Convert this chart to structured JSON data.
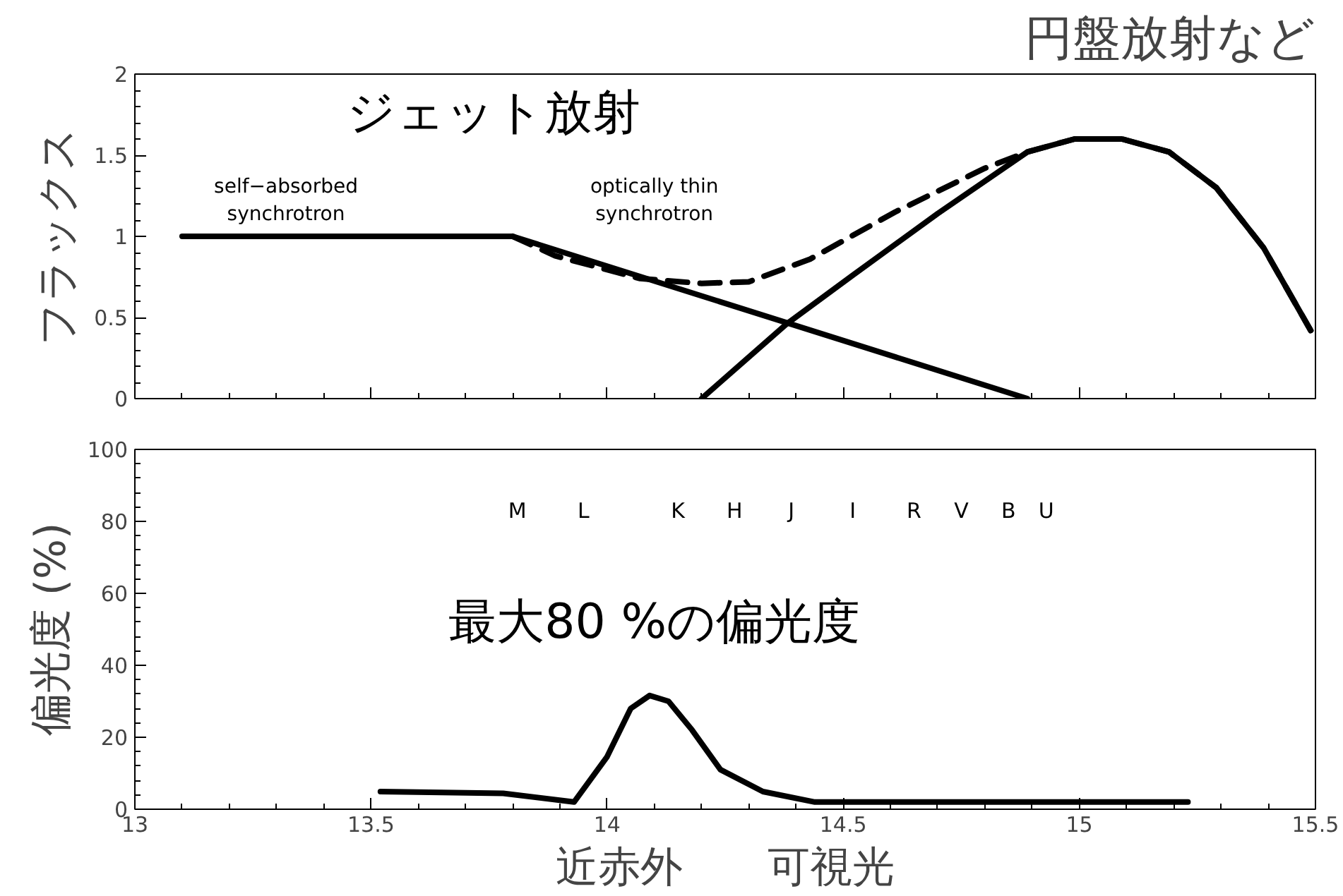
{
  "chart_data": [
    {
      "type": "line",
      "ylabel": "フラックス",
      "xlim": [
        13,
        15.5
      ],
      "xticks": [
        13,
        13.5,
        14,
        14.5,
        15,
        15.5
      ],
      "ylim": [
        0,
        2
      ],
      "yticks": [
        0,
        0.5,
        1,
        1.5,
        2
      ],
      "tick_labels": "y",
      "grid": false,
      "series": [
        {
          "color": "#000000",
          "line_style": "solid",
          "x": [
            13.1,
            13.8,
            14.89
          ],
          "values": [
            1,
            1,
            0
          ]
        },
        {
          "color": "#000000",
          "line_style": "solid",
          "x": [
            14.2,
            14.38,
            14.52,
            14.7,
            14.89,
            14.99,
            15.09,
            15.19,
            15.29,
            15.39,
            15.49
          ],
          "values": [
            0,
            0.46,
            0.76,
            1.14,
            1.52,
            1.6,
            1.6,
            1.52,
            1.3,
            0.93,
            0.42
          ]
        },
        {
          "color": "#000000",
          "line_style": "dashed",
          "x": [
            13.8,
            13.89,
            14.07,
            14.2,
            14.3,
            14.43,
            14.61,
            14.8,
            14.89,
            14.99,
            15.09,
            15.19,
            15.29,
            15.39,
            15.49
          ],
          "values": [
            1,
            0.88,
            0.74,
            0.71,
            0.72,
            0.86,
            1.15,
            1.42,
            1.52,
            1.6,
            1.6,
            1.52,
            1.3,
            0.93,
            0.42
          ]
        }
      ],
      "annotations": [
        "ジェット放射",
        "self−absorbed\nsynchrotron",
        "optically thin\nsynchrotron",
        "円盤放射など"
      ]
    },
    {
      "type": "line",
      "ylabel": "偏光度 (%)",
      "xlabel": "近赤外　　可視光",
      "xlim": [
        13,
        15.5
      ],
      "xticks": [
        13,
        13.5,
        14,
        14.5,
        15,
        15.5
      ],
      "ylim": [
        0,
        100
      ],
      "yticks": [
        0,
        20,
        40,
        60,
        80,
        100
      ],
      "grid": false,
      "series": [
        {
          "color": "#000000",
          "line_style": "solid",
          "x": [
            13.52,
            13.78,
            13.93,
            14.0,
            14.05,
            14.09,
            14.13,
            14.18,
            14.24,
            14.33,
            14.44,
            14.7,
            15.23
          ],
          "values": [
            4.9,
            4.4,
            2,
            14.6,
            28,
            31.6,
            30,
            22,
            11,
            4.9,
            2,
            2,
            2
          ]
        }
      ],
      "annotations": [
        "最大80 %の偏光度",
        "M",
        "L",
        "K",
        "H",
        "J",
        "I",
        "R",
        "V",
        "B",
        "U"
      ]
    }
  ]
}
